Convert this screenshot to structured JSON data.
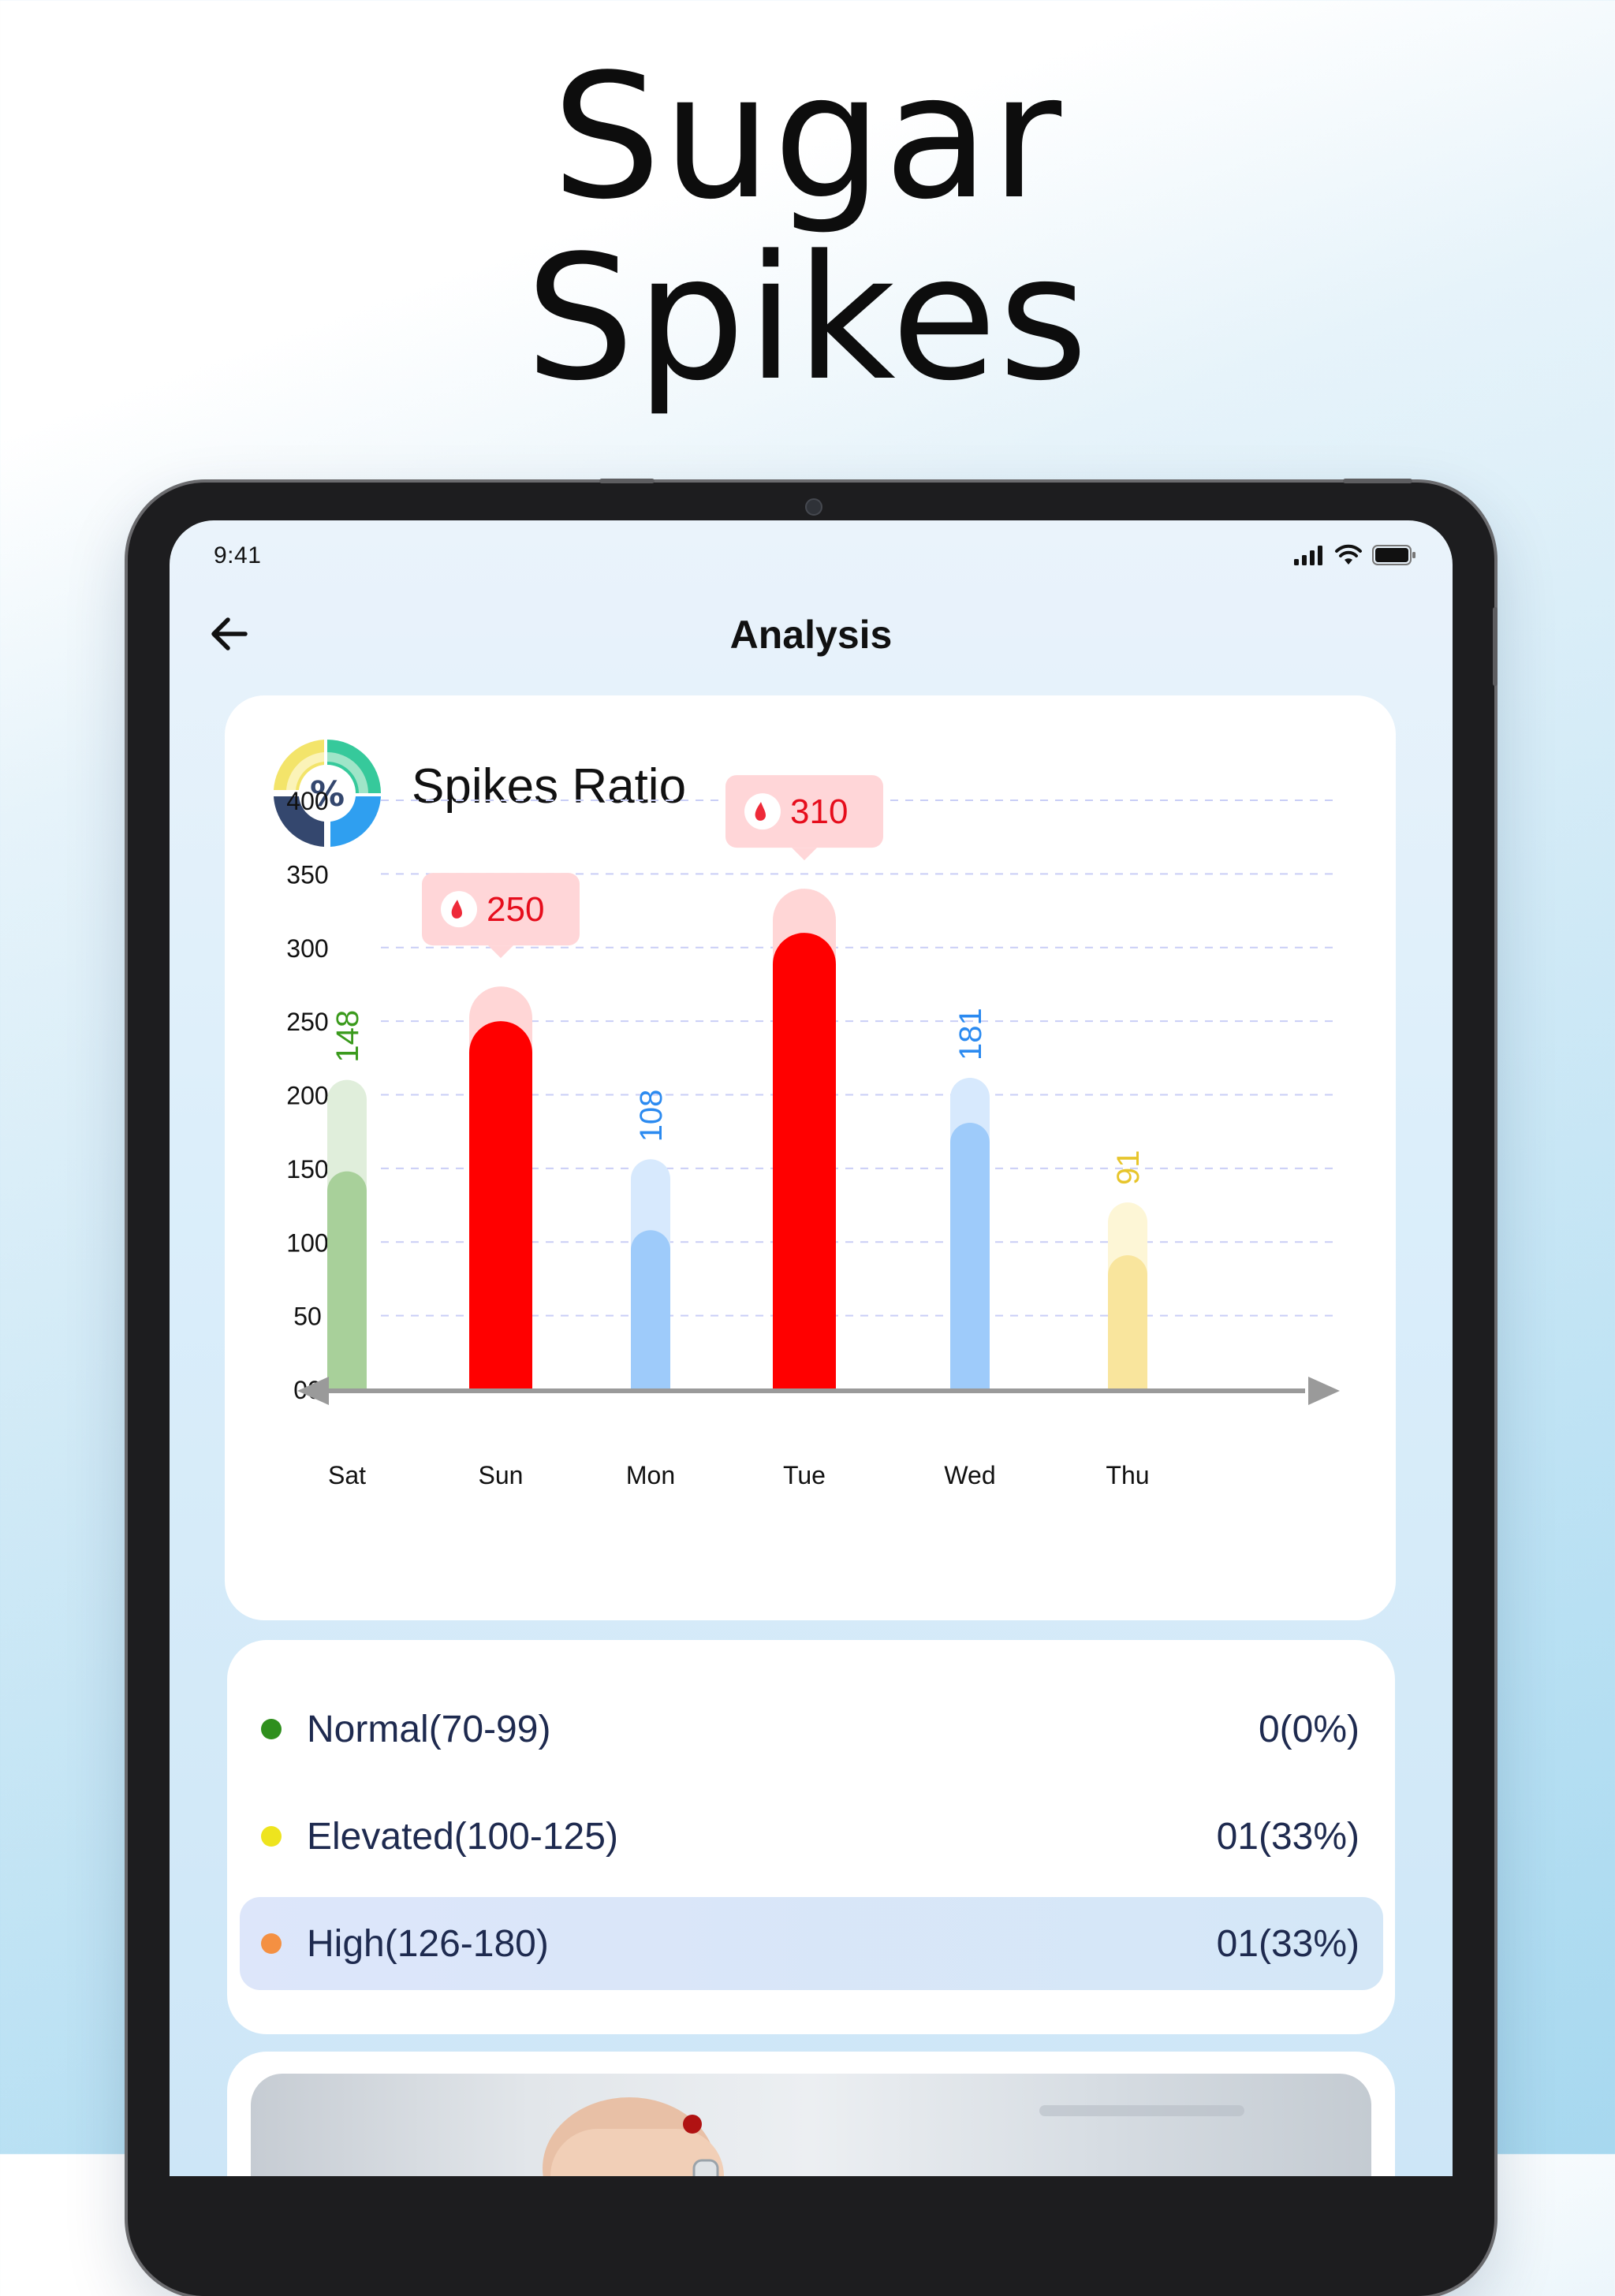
{
  "headline": {
    "line1": "Sugar",
    "line2": "Spikes"
  },
  "status_bar": {
    "time": "9:41"
  },
  "header": {
    "title": "Analysis"
  },
  "chart_card": {
    "title": "Spikes Ratio"
  },
  "chart_data": {
    "type": "bar",
    "categories": [
      "Sat",
      "Sun",
      "Mon",
      "Tue",
      "Wed",
      "Thu"
    ],
    "values": [
      148,
      250,
      108,
      310,
      181,
      91
    ],
    "y_ticks": [
      "00",
      "50",
      "100",
      "150",
      "200",
      "250",
      "300",
      "350",
      "400"
    ],
    "ylim": [
      0,
      400
    ],
    "grid": true,
    "callouts": [
      {
        "category": "Sun",
        "label": "250"
      },
      {
        "category": "Tue",
        "label": "310"
      }
    ],
    "rotated_labels": [
      {
        "category": "Sat",
        "label": "148"
      },
      {
        "category": "Mon",
        "label": "108"
      },
      {
        "category": "Wed",
        "label": "181"
      },
      {
        "category": "Thu",
        "label": "91"
      }
    ],
    "colors": {
      "Sat": "#a8d09a",
      "Sun": "#ff0000",
      "Mon": "#9ecbfa",
      "Tue": "#ff0000",
      "Wed": "#9ecbfa",
      "Thu": "#f9e59d"
    },
    "label_colors": {
      "Sat": "#3a9a1c",
      "Mon": "#2b8af0",
      "Wed": "#2b8af0",
      "Thu": "#e7c52c"
    }
  },
  "legend": {
    "items": [
      {
        "label": "Normal(70-99)",
        "value": "0(0%)",
        "dot_color": "#2f8f1d",
        "active": false
      },
      {
        "label": "Elevated(100-125)",
        "value": "01(33%)",
        "dot_color": "#eee41e",
        "active": false
      },
      {
        "label": "High(126-180)",
        "value": "01(33%)",
        "dot_color": "#f49042",
        "active": true
      }
    ]
  }
}
